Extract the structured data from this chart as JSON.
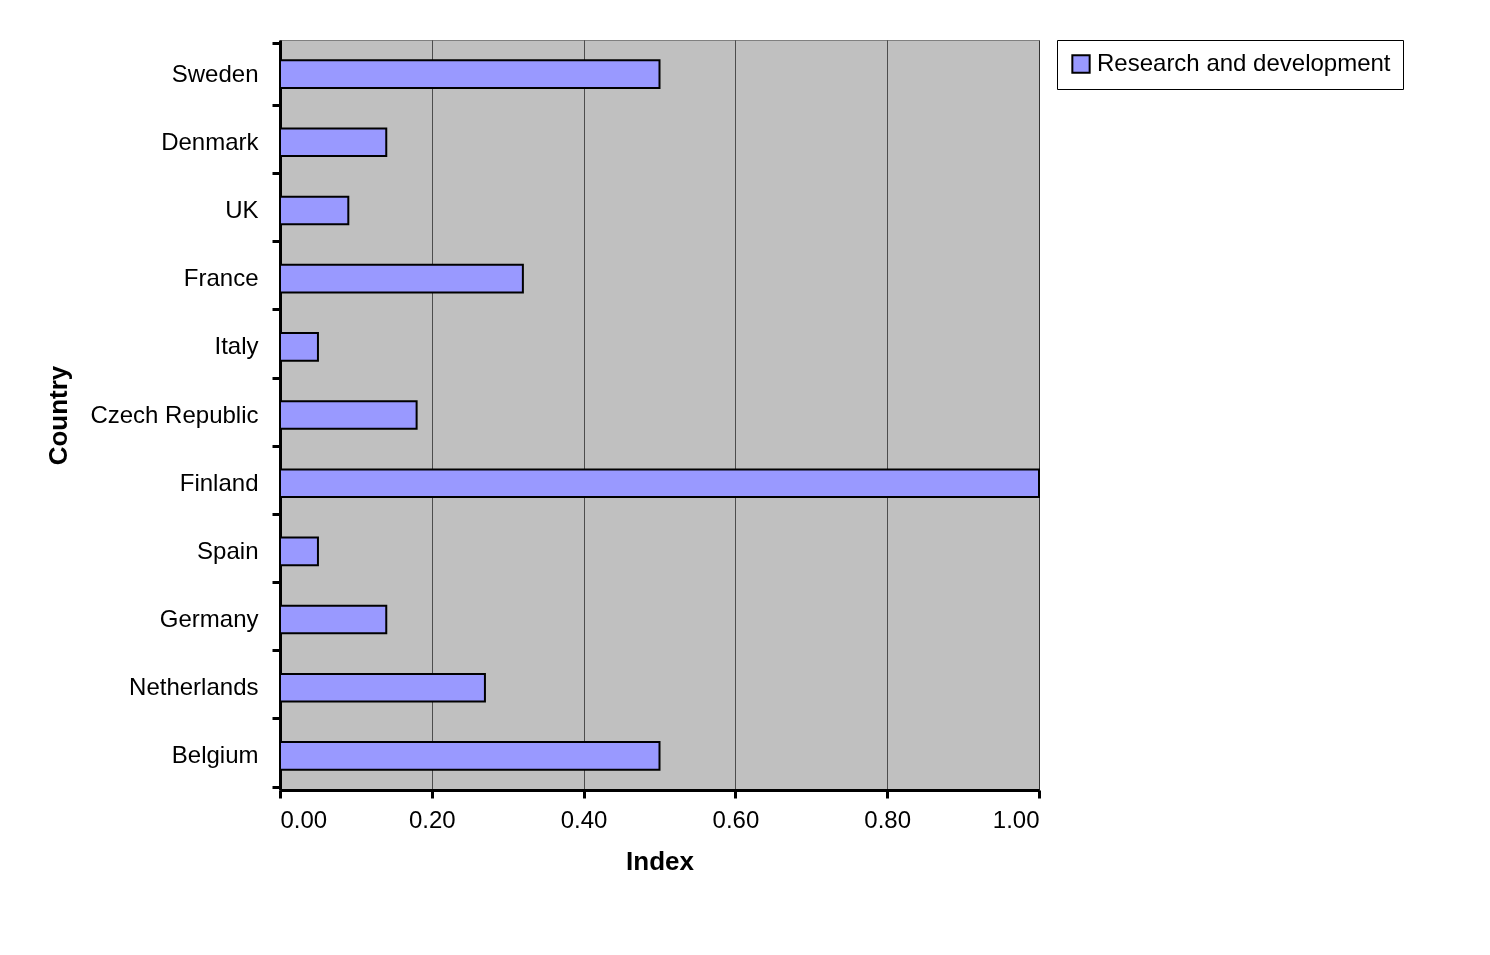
{
  "chart_data": {
    "type": "bar",
    "orientation": "horizontal",
    "xlabel": "Index",
    "ylabel": "Country",
    "categories": [
      "Sweden",
      "Denmark",
      "UK",
      "France",
      "Italy",
      "Czech Republic",
      "Finland",
      "Spain",
      "Germany",
      "Netherlands",
      "Belgium"
    ],
    "series": [
      {
        "name": "Research and development",
        "color": "#9999ff",
        "values": [
          0.5,
          0.14,
          0.09,
          0.32,
          0.05,
          0.18,
          1.0,
          0.05,
          0.14,
          0.27,
          0.5
        ]
      }
    ],
    "xlim": [
      0,
      1
    ],
    "xticks": [
      {
        "value": 0,
        "label": "0.00"
      },
      {
        "value": 0.2,
        "label": "0.20"
      },
      {
        "value": 0.4,
        "label": "0.40"
      },
      {
        "value": 0.6,
        "label": "0.60"
      },
      {
        "value": 0.8,
        "label": "0.80"
      },
      {
        "value": 1,
        "label": "1.00"
      }
    ],
    "grid": "x",
    "legend": "right"
  }
}
